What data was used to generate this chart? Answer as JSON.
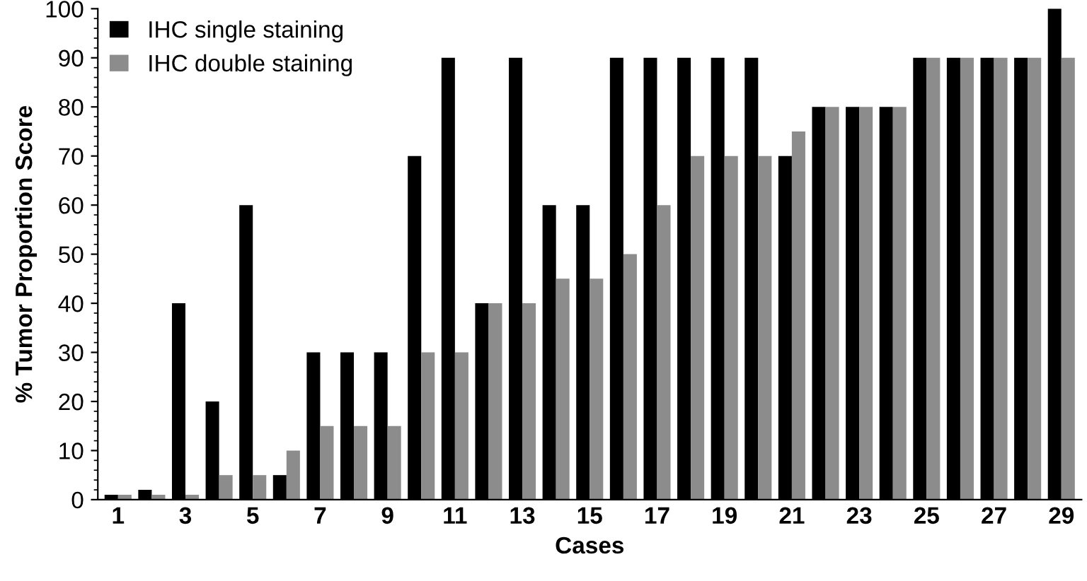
{
  "chart_data": {
    "type": "bar",
    "xlabel": "Cases",
    "ylabel": "% Tumor Proportion Score",
    "categories": [
      "1",
      null,
      "3",
      null,
      "5",
      null,
      "7",
      null,
      "9",
      null,
      "11",
      null,
      "13",
      null,
      "15",
      null,
      "17",
      null,
      "19",
      null,
      "21",
      null,
      "23",
      null,
      "25",
      null,
      "27",
      null,
      "29"
    ],
    "series": [
      {
        "name": "IHC single staining",
        "color": "#000000",
        "values": [
          1,
          2,
          40,
          20,
          60,
          5,
          30,
          30,
          30,
          70,
          90,
          40,
          90,
          60,
          60,
          90,
          90,
          90,
          90,
          90,
          70,
          80,
          80,
          80,
          90,
          90,
          90,
          90,
          100
        ]
      },
      {
        "name": "IHC double staining",
        "color": "#8c8c8c",
        "values": [
          1,
          1,
          1,
          5,
          5,
          10,
          15,
          15,
          15,
          30,
          30,
          40,
          40,
          45,
          45,
          50,
          60,
          70,
          70,
          70,
          75,
          80,
          80,
          80,
          90,
          90,
          90,
          90,
          90
        ]
      }
    ],
    "ylim": [
      0,
      100
    ],
    "yticks": [
      0,
      10,
      20,
      30,
      40,
      50,
      60,
      70,
      80,
      90,
      100
    ],
    "grid": false,
    "legend": "top left"
  }
}
